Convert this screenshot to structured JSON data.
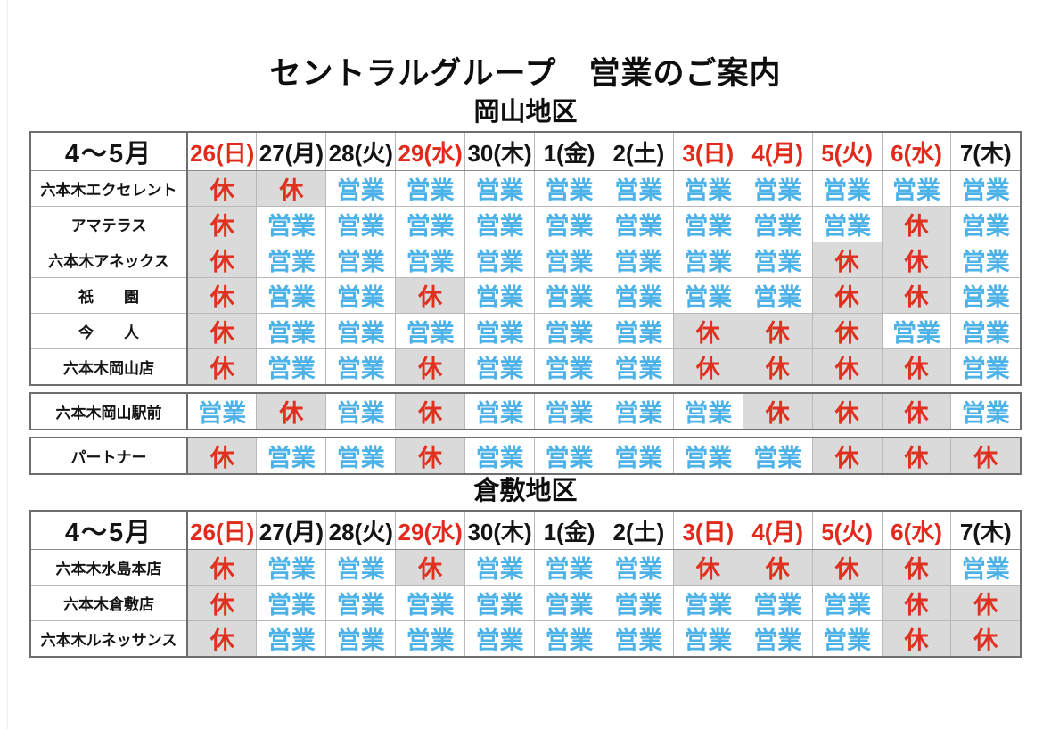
{
  "page_title": "セントラルグループ　営業のご案内",
  "cell_labels": {
    "open": "営業",
    "closed": "休"
  },
  "colors": {
    "open_text": "#4db2e8",
    "closed_text": "#e0301f",
    "closed_bg": "#dadada",
    "red_date": "#e22a1c",
    "black_date": "#141414"
  },
  "column_headers": {
    "period": "4～5月",
    "dates": [
      {
        "label": "26(日)",
        "red": true
      },
      {
        "label": "27(月)",
        "red": false
      },
      {
        "label": "28(火)",
        "red": false
      },
      {
        "label": "29(水)",
        "red": true
      },
      {
        "label": "30(木)",
        "red": false
      },
      {
        "label": "1(金)",
        "red": false
      },
      {
        "label": "2(土)",
        "red": false
      },
      {
        "label": "3(日)",
        "red": true
      },
      {
        "label": "4(月)",
        "red": true
      },
      {
        "label": "5(火)",
        "red": true
      },
      {
        "label": "6(水)",
        "red": true
      },
      {
        "label": "7(木)",
        "red": false
      }
    ]
  },
  "regions": [
    {
      "name": "岡山地区",
      "blocks": [
        {
          "rows": [
            {
              "store": "六本木エクセレント",
              "days": [
                "休",
                "休",
                "営業",
                "営業",
                "営業",
                "営業",
                "営業",
                "営業",
                "営業",
                "営業",
                "営業",
                "営業"
              ]
            },
            {
              "store": "アマテラス",
              "days": [
                "休",
                "営業",
                "営業",
                "営業",
                "営業",
                "営業",
                "営業",
                "営業",
                "営業",
                "営業",
                "休",
                "営業"
              ]
            },
            {
              "store": "六本木アネックス",
              "days": [
                "休",
                "営業",
                "営業",
                "営業",
                "営業",
                "営業",
                "営業",
                "営業",
                "営業",
                "休",
                "休",
                "営業"
              ]
            },
            {
              "store": "祇　　園",
              "days": [
                "休",
                "営業",
                "営業",
                "休",
                "営業",
                "営業",
                "営業",
                "営業",
                "営業",
                "休",
                "休",
                "営業"
              ]
            },
            {
              "store": "今　　人",
              "days": [
                "休",
                "営業",
                "営業",
                "営業",
                "営業",
                "営業",
                "営業",
                "休",
                "休",
                "休",
                "営業",
                "営業"
              ]
            },
            {
              "store": "六本木岡山店",
              "days": [
                "休",
                "営業",
                "営業",
                "休",
                "営業",
                "営業",
                "営業",
                "休",
                "休",
                "休",
                "休",
                "営業"
              ]
            }
          ]
        },
        {
          "rows": [
            {
              "store": "六本木岡山駅前",
              "days": [
                "営業",
                "休",
                "営業",
                "休",
                "営業",
                "営業",
                "営業",
                "営業",
                "休",
                "休",
                "休",
                "営業"
              ]
            }
          ]
        },
        {
          "rows": [
            {
              "store": "パートナー",
              "days": [
                "休",
                "営業",
                "営業",
                "休",
                "営業",
                "営業",
                "営業",
                "営業",
                "営業",
                "休",
                "休",
                "休"
              ]
            }
          ]
        }
      ]
    },
    {
      "name": "倉敷地区",
      "blocks": [
        {
          "rows": [
            {
              "store": "六本木水島本店",
              "days": [
                "休",
                "営業",
                "営業",
                "休",
                "営業",
                "営業",
                "営業",
                "休",
                "休",
                "休",
                "休",
                "営業"
              ]
            },
            {
              "store": "六本木倉敷店",
              "days": [
                "休",
                "営業",
                "営業",
                "営業",
                "営業",
                "営業",
                "営業",
                "営業",
                "営業",
                "営業",
                "休",
                "休"
              ]
            },
            {
              "store": "六本木ルネッサンス",
              "days": [
                "休",
                "営業",
                "営業",
                "営業",
                "営業",
                "営業",
                "営業",
                "営業",
                "営業",
                "営業",
                "休",
                "休"
              ]
            }
          ]
        }
      ]
    }
  ]
}
